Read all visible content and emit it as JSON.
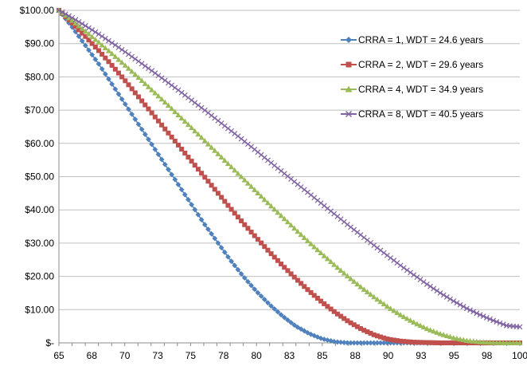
{
  "chart_data": {
    "type": "line",
    "title": "",
    "xlabel": "",
    "ylabel": "",
    "xlim": [
      65,
      100
    ],
    "ylim": [
      0,
      100
    ],
    "x_tick_labels": [
      "65",
      "68",
      "70",
      "73",
      "75",
      "78",
      "80",
      "83",
      "85",
      "88",
      "90",
      "93",
      "95",
      "98",
      "100"
    ],
    "y_tick_labels": [
      "$-",
      "$10.00",
      "$20.00",
      "$30.00",
      "$40.00",
      "$50.00",
      "$60.00",
      "$70.00",
      "$80.00",
      "$90.00",
      "$100.00"
    ],
    "grid": "horizontal",
    "legend_position": "top-right",
    "x": [
      65,
      66,
      67,
      68,
      69,
      70,
      71,
      72,
      73,
      74,
      75,
      76,
      77,
      78,
      79,
      80,
      81,
      82,
      83,
      84,
      85,
      86,
      87,
      88,
      89,
      90,
      91,
      92,
      93,
      94,
      95,
      96,
      97,
      98,
      99,
      100
    ],
    "series": [
      {
        "name": "CRRA = 1, WDT = 24.6 years",
        "color": "#4f81bd",
        "marker": "diamond",
        "values": [
          100,
          95,
          89.5,
          84,
          78,
          72,
          66,
          60,
          54,
          48,
          42,
          36,
          30.5,
          25,
          20,
          15.5,
          11.5,
          8,
          5,
          2.8,
          1.2,
          0.3,
          0,
          0,
          0,
          0,
          0,
          0,
          0,
          0,
          0,
          0,
          0,
          0,
          0,
          0
        ]
      },
      {
        "name": "CRRA = 2, WDT = 29.6 years",
        "color": "#c0504d",
        "marker": "square",
        "values": [
          100,
          96.2,
          92.2,
          88,
          83.6,
          79,
          74.2,
          69.4,
          64.6,
          59.8,
          55,
          50.2,
          45.4,
          40.6,
          36,
          31.6,
          27.3,
          23.2,
          19.3,
          15.6,
          12.2,
          9.1,
          6.4,
          4.1,
          2.3,
          1.1,
          0.5,
          0.2,
          0.1,
          0,
          0,
          0,
          0,
          0,
          0,
          0
        ]
      },
      {
        "name": "CRRA = 4, WDT = 34.9 years",
        "color": "#9bbb59",
        "marker": "triangle",
        "values": [
          100,
          97,
          93.8,
          90.5,
          87.1,
          83.6,
          80,
          76.3,
          72.6,
          68.8,
          65,
          61.1,
          57.2,
          53.3,
          49.4,
          45.5,
          41.6,
          37.8,
          34,
          30.3,
          26.7,
          23.2,
          19.8,
          16.6,
          13.6,
          10.8,
          8.3,
          6.1,
          4.2,
          2.7,
          1.5,
          0.7,
          0.3,
          0.1,
          0,
          0
        ]
      },
      {
        "name": "CRRA = 8, WDT = 40.5 years",
        "color": "#8064a2",
        "marker": "x",
        "values": [
          100,
          97.8,
          95.4,
          92.9,
          90.3,
          87.6,
          84.8,
          82,
          79.1,
          76.2,
          73.2,
          70.2,
          67.1,
          64,
          60.9,
          57.7,
          54.5,
          51.3,
          48.1,
          44.9,
          41.7,
          38.5,
          35.3,
          32.2,
          29.1,
          26.1,
          23.1,
          20.3,
          17.5,
          14.9,
          12.5,
          10.3,
          8.4,
          6.7,
          5.2,
          4.8
        ]
      }
    ]
  }
}
